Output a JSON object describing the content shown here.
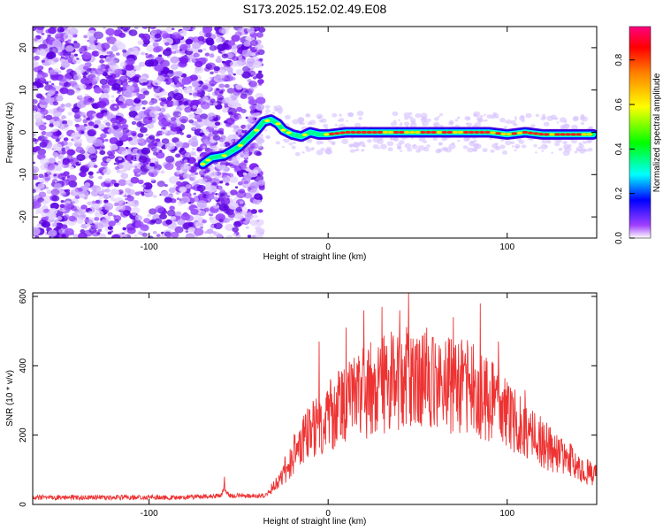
{
  "title": "S173.2025.152.02.49.E08",
  "chart_data": [
    {
      "type": "heatmap",
      "xlabel": "Height of straight line (km)",
      "ylabel": "Frequency (Hz)",
      "xlim": [
        -165,
        150
      ],
      "ylim": [
        -25,
        25
      ],
      "x_ticks": [
        -100,
        0,
        100
      ],
      "y_ticks": [
        -20,
        -10,
        0,
        10,
        20
      ],
      "colorbar": {
        "label": "Normalized spectral amplitude",
        "range": [
          0.0,
          0.95
        ],
        "ticks": [
          "0.0",
          "0.2",
          "0.4",
          "0.6",
          "0.8"
        ],
        "colormap": [
          "#ffffff",
          "#a040ff",
          "#0000ff",
          "#00ffff",
          "#00ff00",
          "#ffff00",
          "#ff8000",
          "#ff0000",
          "#ff0080"
        ]
      },
      "ridge": [
        [
          -70,
          -7.5
        ],
        [
          -65,
          -6.0
        ],
        [
          -58,
          -5.5
        ],
        [
          -50,
          -3.5
        ],
        [
          -45,
          -1.5
        ],
        [
          -40,
          0.5
        ],
        [
          -36,
          2.5
        ],
        [
          -32,
          3.0
        ],
        [
          -28,
          2.0
        ],
        [
          -25,
          0.5
        ],
        [
          -20,
          -0.5
        ],
        [
          -15,
          -1.0
        ],
        [
          -10,
          0.0
        ],
        [
          -5,
          -0.5
        ],
        [
          0,
          -0.5
        ],
        [
          10,
          0.0
        ],
        [
          30,
          0.0
        ],
        [
          50,
          0.0
        ],
        [
          70,
          0.0
        ],
        [
          90,
          0.0
        ],
        [
          100,
          -0.5
        ],
        [
          110,
          0.0
        ],
        [
          120,
          -0.5
        ],
        [
          130,
          -0.5
        ],
        [
          148,
          -0.5
        ]
      ]
    },
    {
      "type": "line",
      "xlabel": "Height of straight line (km)",
      "ylabel": "SNR (10 * v/v)",
      "xlim": [
        -165,
        150
      ],
      "ylim": [
        0,
        610
      ],
      "x_ticks": [
        -100,
        0,
        100
      ],
      "y_ticks": [
        0,
        200,
        400,
        600
      ],
      "color": "#ee3333",
      "envelope": [
        [
          -165,
          20
        ],
        [
          -120,
          20
        ],
        [
          -80,
          20
        ],
        [
          -60,
          25
        ],
        [
          -58,
          45
        ],
        [
          -55,
          25
        ],
        [
          -35,
          25
        ],
        [
          -28,
          60
        ],
        [
          -20,
          140
        ],
        [
          -10,
          210
        ],
        [
          0,
          250
        ],
        [
          10,
          290
        ],
        [
          20,
          320
        ],
        [
          30,
          345
        ],
        [
          40,
          360
        ],
        [
          50,
          365
        ],
        [
          60,
          360
        ],
        [
          70,
          350
        ],
        [
          80,
          330
        ],
        [
          90,
          300
        ],
        [
          100,
          260
        ],
        [
          110,
          210
        ],
        [
          120,
          175
        ],
        [
          130,
          140
        ],
        [
          140,
          110
        ],
        [
          150,
          80
        ]
      ],
      "peaks": [
        [
          -58,
          80
        ],
        [
          -5,
          470
        ],
        [
          10,
          510
        ],
        [
          20,
          560
        ],
        [
          30,
          570
        ],
        [
          40,
          560
        ],
        [
          45,
          610
        ],
        [
          55,
          510
        ],
        [
          70,
          540
        ],
        [
          85,
          580
        ],
        [
          95,
          470
        ],
        [
          110,
          330
        ]
      ]
    }
  ]
}
